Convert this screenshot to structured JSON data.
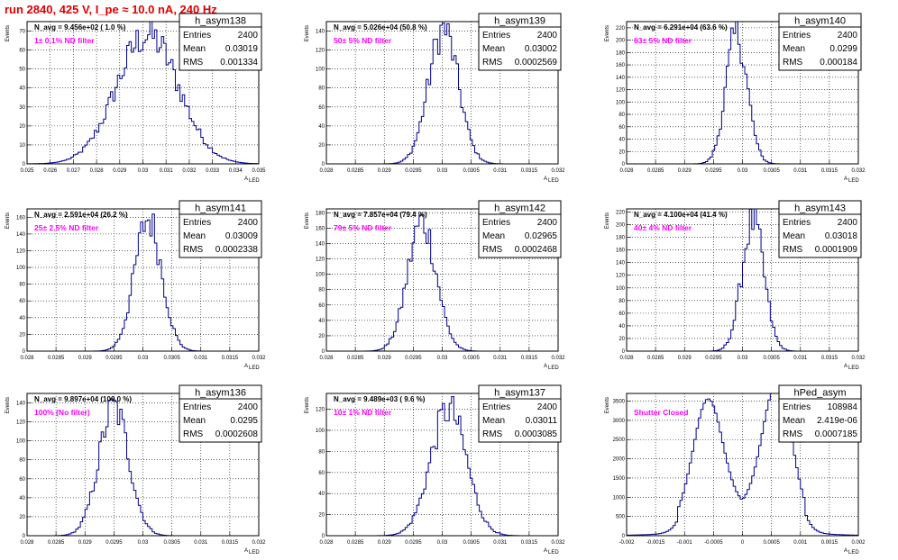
{
  "header": {
    "run_title": "run 2840,   425 V, I_pe ≈ 10.0 nA, 240 Hz"
  },
  "panel_text": {
    "ylabel": "Events",
    "xlabel": "A",
    "xlabel_sub": "LED"
  },
  "stat_labels": {
    "entries": "Entries",
    "mean": "Mean",
    "rms": "RMS"
  },
  "colors": {
    "line": "#00008b",
    "filter": "#ff00ff",
    "header": "#e00000"
  },
  "chart_data": [
    {
      "type": "bar",
      "name": "h_asym138",
      "navg": "N_avg = 9.456e+02 ( 1.0 %)",
      "filter": "1± 0.1% ND filter",
      "entries": "2400",
      "mean": "0.03019",
      "rms": "0.001334",
      "xlim": [
        0.025,
        0.035
      ],
      "ylim": [
        0,
        75
      ],
      "xticks": [
        "0.025",
        "0.026",
        "0.027",
        "0.028",
        "0.029",
        "0.03",
        "0.031",
        "0.032",
        "0.033",
        "0.034",
        "0.035"
      ],
      "yticks": [
        0,
        10,
        20,
        30,
        40,
        50,
        60,
        70
      ],
      "shape": "gauss",
      "mu": 0.0302,
      "sigma": 0.00133,
      "peak": 68
    },
    {
      "type": "bar",
      "name": "h_asym139",
      "navg": "N_avg = 5.026e+04 (50.8 %)",
      "filter": "50± 5% ND filter",
      "entries": "2400",
      "mean": "0.03002",
      "rms": "0.0002569",
      "xlim": [
        0.028,
        0.032
      ],
      "ylim": [
        0,
        150
      ],
      "xticks": [
        "0.028",
        "0.0285",
        "0.029",
        "0.0295",
        "0.03",
        "0.0305",
        "0.031",
        "0.0315",
        "0.032"
      ],
      "yticks": [
        0,
        20,
        40,
        60,
        80,
        100,
        120,
        140
      ],
      "shape": "gauss",
      "mu": 0.03002,
      "sigma": 0.000257,
      "peak": 142
    },
    {
      "type": "bar",
      "name": "h_asym140",
      "navg": "N_avg = 6.291e+04 (63.6 %)",
      "filter": "63± 5% ND filter",
      "entries": "2400",
      "mean": "0.0299",
      "rms": "0.000184",
      "xlim": [
        0.028,
        0.032
      ],
      "ylim": [
        0,
        230
      ],
      "xticks": [
        "0.028",
        "0.0285",
        "0.029",
        "0.0295",
        "0.03",
        "0.0305",
        "0.031",
        "0.0315",
        "0.032"
      ],
      "yticks": [
        0,
        20,
        40,
        60,
        80,
        100,
        120,
        140,
        160,
        180,
        200,
        220
      ],
      "shape": "gauss",
      "mu": 0.0299,
      "sigma": 0.000184,
      "peak": 210
    },
    {
      "type": "bar",
      "name": "h_asym141",
      "navg": "N_avg = 2.591e+04 (26.2 %)",
      "filter": "25± 2.5% ND filter",
      "entries": "2400",
      "mean": "0.03009",
      "rms": "0.0002338",
      "xlim": [
        0.028,
        0.032
      ],
      "ylim": [
        0,
        170
      ],
      "xticks": [
        "0.028",
        "0.0285",
        "0.029",
        "0.0295",
        "0.03",
        "0.0305",
        "0.031",
        "0.0315",
        "0.032"
      ],
      "yticks": [
        0,
        20,
        40,
        60,
        80,
        100,
        120,
        140,
        160
      ],
      "shape": "gauss",
      "mu": 0.03009,
      "sigma": 0.000234,
      "peak": 158
    },
    {
      "type": "bar",
      "name": "h_asym142",
      "navg": "N_avg = 7.857e+04 (79.4 %)",
      "filter": "79± 5% ND filter",
      "entries": "2400",
      "mean": "0.02965",
      "rms": "0.0002468",
      "xlim": [
        0.028,
        0.032
      ],
      "ylim": [
        0,
        185
      ],
      "xticks": [
        "0.028",
        "0.0285",
        "0.029",
        "0.0295",
        "0.03",
        "0.0305",
        "0.031",
        "0.0315",
        "0.032"
      ],
      "yticks": [
        0,
        20,
        40,
        60,
        80,
        100,
        120,
        140,
        160,
        180
      ],
      "shape": "gauss",
      "mu": 0.02965,
      "sigma": 0.000247,
      "peak": 168
    },
    {
      "type": "bar",
      "name": "h_asym143",
      "navg": "N_avg = 4.100e+04 (41.4 %)",
      "filter": "40± 4% ND filter",
      "entries": "2400",
      "mean": "0.03018",
      "rms": "0.0001909",
      "xlim": [
        0.028,
        0.032
      ],
      "ylim": [
        0,
        225
      ],
      "xticks": [
        "0.028",
        "0.0285",
        "0.029",
        "0.0295",
        "0.03",
        "0.0305",
        "0.031",
        "0.0315",
        "0.032"
      ],
      "yticks": [
        0,
        20,
        40,
        60,
        80,
        100,
        120,
        140,
        160,
        180,
        200,
        220
      ],
      "shape": "gauss",
      "mu": 0.03018,
      "sigma": 0.000191,
      "peak": 205
    },
    {
      "type": "bar",
      "name": "h_asym136",
      "navg": "N_avg = 9.897e+04 (100.0 %)",
      "filter": "100% (No filter)",
      "entries": "2400",
      "mean": "0.0295",
      "rms": "0.0002608",
      "xlim": [
        0.028,
        0.032
      ],
      "ylim": [
        0,
        150
      ],
      "xticks": [
        "0.028",
        "0.0285",
        "0.029",
        "0.0295",
        "0.03",
        "0.0305",
        "0.031",
        "0.0315",
        "0.032"
      ],
      "yticks": [
        0,
        20,
        40,
        60,
        80,
        100,
        120,
        140
      ],
      "shape": "gauss",
      "mu": 0.0295,
      "sigma": 0.00026,
      "peak": 135
    },
    {
      "type": "bar",
      "name": "h_asym137",
      "navg": "N_avg = 9.489e+03 ( 9.6 %)",
      "filter": "10± 1% ND filter",
      "entries": "2400",
      "mean": "0.03011",
      "rms": "0.0003085",
      "xlim": [
        0.028,
        0.032
      ],
      "ylim": [
        0,
        135
      ],
      "xticks": [
        "0.028",
        "0.0285",
        "0.029",
        "0.0295",
        "0.03",
        "0.0305",
        "0.031",
        "0.0315",
        "0.032"
      ],
      "yticks": [
        0,
        20,
        40,
        60,
        80,
        100,
        120
      ],
      "shape": "gauss",
      "mu": 0.03011,
      "sigma": 0.00031,
      "peak": 120
    },
    {
      "type": "bar",
      "name": "hPed_asym",
      "navg": "",
      "filter": "Shutter Closed",
      "entries": "108984",
      "mean": "2.419e-06",
      "rms": "0.0007185",
      "xlim": [
        -0.002,
        0.002
      ],
      "ylim": [
        0,
        3700
      ],
      "xticks": [
        "-0.002",
        "-0.0015",
        "-0.001",
        "-0.0005",
        "0",
        "0.0005",
        "0.001",
        "0.0015",
        "0.002"
      ],
      "yticks": [
        0,
        500,
        1000,
        1500,
        2000,
        2500,
        3000,
        3500
      ],
      "shape": "double",
      "mu": 0.0006,
      "sigma": 0.00025,
      "peak": 3000
    }
  ]
}
